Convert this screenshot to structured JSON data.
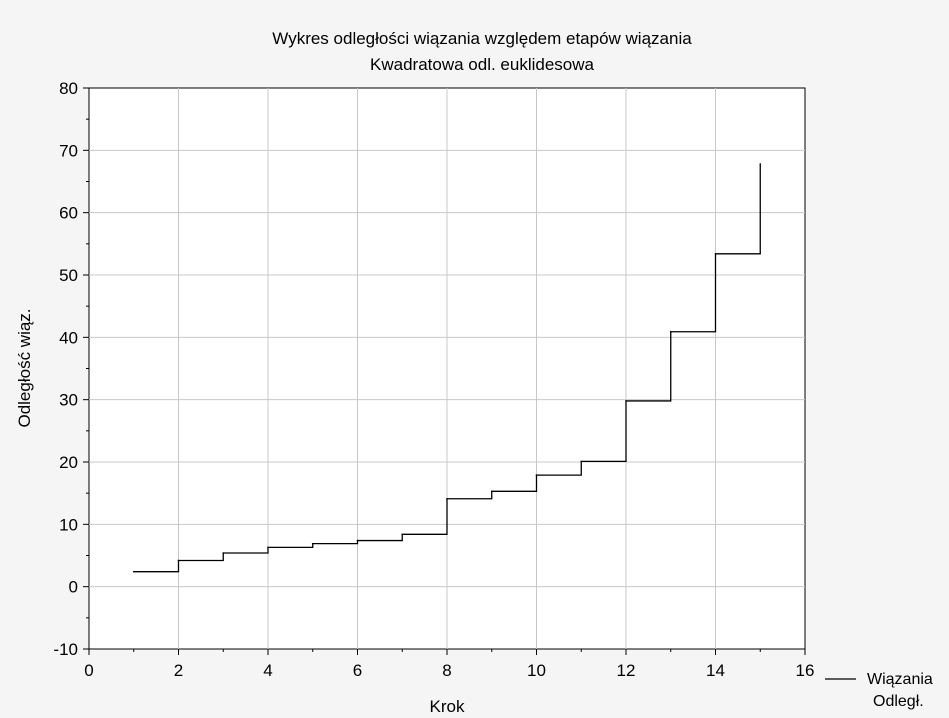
{
  "chart_data": {
    "type": "line",
    "title": "Wykres odległości wiązania względem etapów wiązania",
    "subtitle": "Kwadratowa odl. euklidesowa",
    "xlabel": "Krok",
    "ylabel": "Odległość wiąz.",
    "xlim": [
      0,
      16
    ],
    "ylim": [
      -10,
      80
    ],
    "xticks": [
      0,
      2,
      4,
      6,
      8,
      10,
      12,
      14,
      16
    ],
    "yticks": [
      -10,
      0,
      10,
      20,
      30,
      40,
      50,
      60,
      70,
      80
    ],
    "xtick_labels": [
      "0",
      "2",
      "4",
      "6",
      "8",
      "10",
      "12",
      "14",
      "16"
    ],
    "ytick_labels": [
      "-10",
      "0",
      "10",
      "20",
      "30",
      "40",
      "50",
      "60",
      "70",
      "80"
    ],
    "grid": true,
    "legend_position": "bottom-right",
    "series": [
      {
        "name": "Wiązania Odległ.",
        "legend_lines": [
          "Wiązania",
          "Odległ."
        ],
        "step": true,
        "color": "#000000",
        "x": [
          1,
          2,
          3,
          4,
          5,
          6,
          7,
          8,
          9,
          10,
          11,
          12,
          13,
          14,
          15
        ],
        "y": [
          2.4,
          4.2,
          5.4,
          6.3,
          6.9,
          7.4,
          8.4,
          14.1,
          15.3,
          17.9,
          20.1,
          29.8,
          40.9,
          53.4,
          67.8
        ]
      }
    ]
  }
}
